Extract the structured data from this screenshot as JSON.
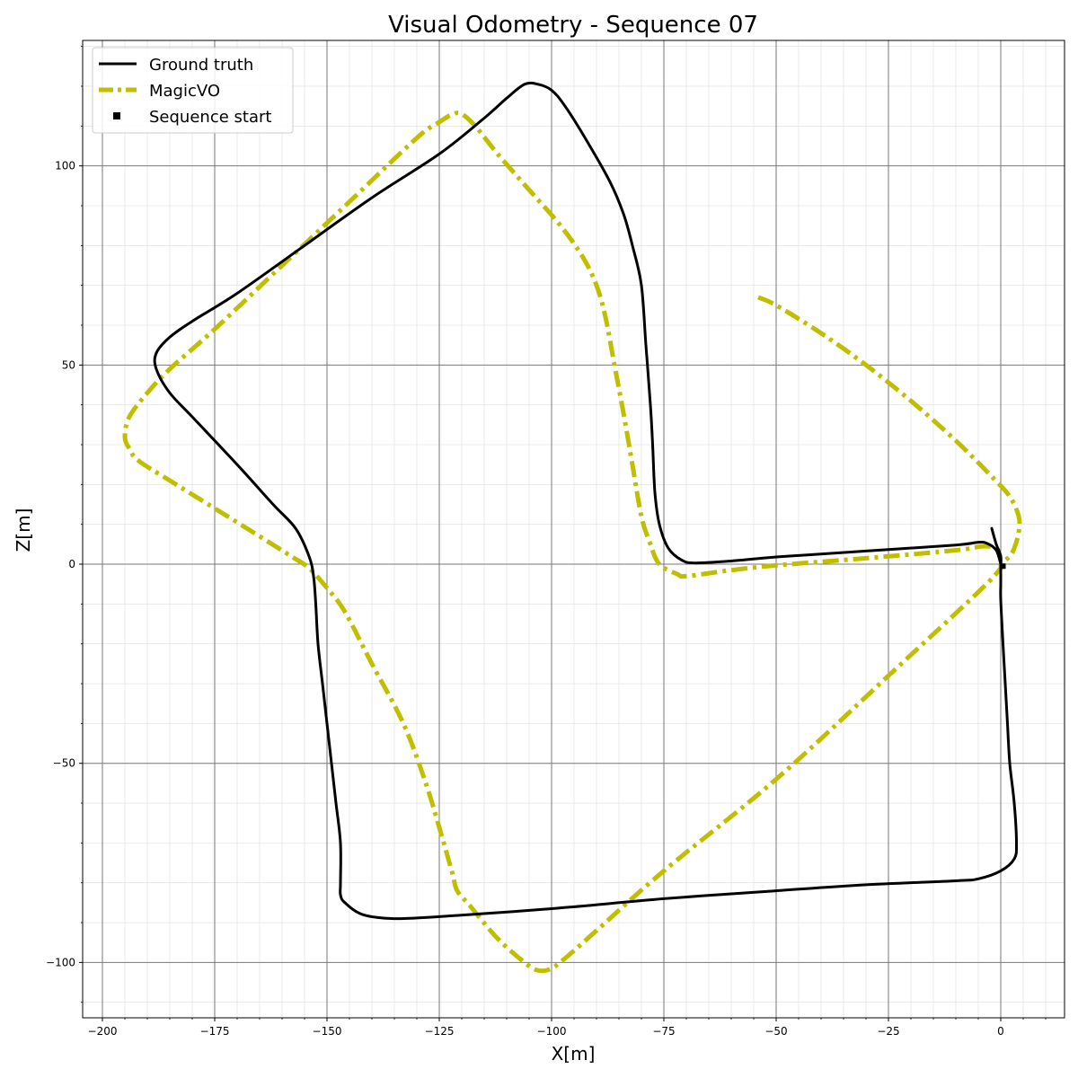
{
  "chart_data": {
    "type": "line",
    "title": "Visual Odometry - Sequence 07",
    "xlabel": "X[m]",
    "ylabel": "Z[m]",
    "xlim": [
      -204.4,
      14.2
    ],
    "ylim": [
      -113.9,
      131.5
    ],
    "xticks": [
      -200,
      -175,
      -150,
      -125,
      -100,
      -75,
      -50,
      -25,
      0
    ],
    "yticks": [
      -100,
      -50,
      0,
      50,
      100
    ],
    "major_grid": true,
    "minor_grid": true,
    "legend_position": "upper-left",
    "series": [
      {
        "name": "Ground truth",
        "color": "#000000",
        "style": "solid",
        "points": [
          [
            -2,
            9
          ],
          [
            -1,
            5
          ],
          [
            0,
            2
          ],
          [
            0,
            -1
          ],
          [
            0,
            -5
          ],
          [
            0,
            -9
          ],
          [
            0.5,
            -20
          ],
          [
            1,
            -30
          ],
          [
            1.5,
            -40
          ],
          [
            2,
            -50
          ],
          [
            3,
            -60
          ],
          [
            3.5,
            -70
          ],
          [
            3,
            -74
          ],
          [
            0,
            -77
          ],
          [
            -5,
            -79
          ],
          [
            -10,
            -79.5
          ],
          [
            -30,
            -80.5
          ],
          [
            -50,
            -82
          ],
          [
            -75,
            -84
          ],
          [
            -100,
            -86.5
          ],
          [
            -125,
            -88.5
          ],
          [
            -135,
            -89
          ],
          [
            -142,
            -88
          ],
          [
            -146,
            -85
          ],
          [
            -147,
            -83
          ],
          [
            -147,
            -80
          ],
          [
            -147,
            -70
          ],
          [
            -148,
            -60
          ],
          [
            -149,
            -50
          ],
          [
            -150,
            -40
          ],
          [
            -151,
            -30
          ],
          [
            -152,
            -20
          ],
          [
            -152.5,
            -10
          ],
          [
            -153,
            -3
          ],
          [
            -154,
            2
          ],
          [
            -157,
            9
          ],
          [
            -162,
            15
          ],
          [
            -170,
            25
          ],
          [
            -180,
            37
          ],
          [
            -185,
            43
          ],
          [
            -188,
            49
          ],
          [
            -188,
            53
          ],
          [
            -185,
            57
          ],
          [
            -180,
            61
          ],
          [
            -170,
            68
          ],
          [
            -155,
            80
          ],
          [
            -140,
            92
          ],
          [
            -125,
            103
          ],
          [
            -115,
            112
          ],
          [
            -110,
            117
          ],
          [
            -106,
            120.5
          ],
          [
            -103,
            120.5
          ],
          [
            -100,
            119
          ],
          [
            -97,
            115
          ],
          [
            -92,
            106
          ],
          [
            -87,
            96
          ],
          [
            -84,
            88
          ],
          [
            -82,
            80
          ],
          [
            -80,
            70
          ],
          [
            -79,
            55
          ],
          [
            -78,
            40
          ],
          [
            -77.5,
            30
          ],
          [
            -77,
            18
          ],
          [
            -76,
            10
          ],
          [
            -74,
            4
          ],
          [
            -71,
            1
          ],
          [
            -68,
            0.3
          ],
          [
            -60,
            0.8
          ],
          [
            -50,
            1.8
          ],
          [
            -30,
            3.3
          ],
          [
            -10,
            4.8
          ],
          [
            -5,
            5.5
          ],
          [
            -3,
            5.2
          ],
          [
            -1,
            3.5
          ],
          [
            0,
            0
          ]
        ]
      },
      {
        "name": "MagicVO",
        "color": "#bfbf00",
        "style": "dashdot",
        "points": [
          [
            -54,
            67
          ],
          [
            -50,
            65
          ],
          [
            -40,
            58
          ],
          [
            -30,
            50
          ],
          [
            -20,
            41
          ],
          [
            -10,
            31
          ],
          [
            -2,
            22
          ],
          [
            2,
            17
          ],
          [
            4,
            12
          ],
          [
            4,
            8
          ],
          [
            3,
            4
          ],
          [
            2,
            2
          ],
          [
            0,
            0
          ],
          [
            0,
            -1
          ],
          [
            -5,
            -7
          ],
          [
            -25,
            -28
          ],
          [
            -50,
            -54
          ],
          [
            -75,
            -77
          ],
          [
            -90,
            -92
          ],
          [
            -96,
            -98
          ],
          [
            -100,
            -101.5
          ],
          [
            -103,
            -102
          ],
          [
            -106,
            -100
          ],
          [
            -112,
            -94
          ],
          [
            -118,
            -86
          ],
          [
            -121,
            -82
          ],
          [
            -122,
            -78
          ],
          [
            -124,
            -70
          ],
          [
            -128,
            -55
          ],
          [
            -133,
            -40
          ],
          [
            -140,
            -25
          ],
          [
            -146,
            -12
          ],
          [
            -150,
            -6
          ],
          [
            -154,
            -1
          ],
          [
            -158,
            2
          ],
          [
            -165,
            7
          ],
          [
            -175,
            14
          ],
          [
            -185,
            21
          ],
          [
            -192,
            26
          ],
          [
            -194,
            29
          ],
          [
            -195,
            32
          ],
          [
            -194,
            37
          ],
          [
            -190,
            43
          ],
          [
            -185,
            49
          ],
          [
            -175,
            59
          ],
          [
            -160,
            75
          ],
          [
            -145,
            91
          ],
          [
            -130,
            107
          ],
          [
            -125,
            111
          ],
          [
            -122,
            113
          ],
          [
            -120,
            113
          ],
          [
            -117,
            110
          ],
          [
            -112,
            103
          ],
          [
            -105,
            94
          ],
          [
            -98,
            85
          ],
          [
            -93,
            77
          ],
          [
            -90,
            70
          ],
          [
            -88,
            62
          ],
          [
            -86,
            50
          ],
          [
            -84,
            38
          ],
          [
            -82,
            25
          ],
          [
            -80,
            12
          ],
          [
            -78,
            5
          ],
          [
            -76,
            0
          ],
          [
            -72,
            -2.5
          ],
          [
            -70,
            -3
          ],
          [
            -60,
            -1.5
          ],
          [
            -50,
            -0.3
          ],
          [
            -30,
            1.5
          ],
          [
            -10,
            3.5
          ],
          [
            -4,
            4.5
          ],
          [
            -1,
            4
          ],
          [
            0,
            2
          ]
        ]
      },
      {
        "name": "Sequence start",
        "color": "#000000",
        "style": "marker-square",
        "points": [
          [
            0.5,
            -0.5
          ]
        ]
      }
    ]
  }
}
